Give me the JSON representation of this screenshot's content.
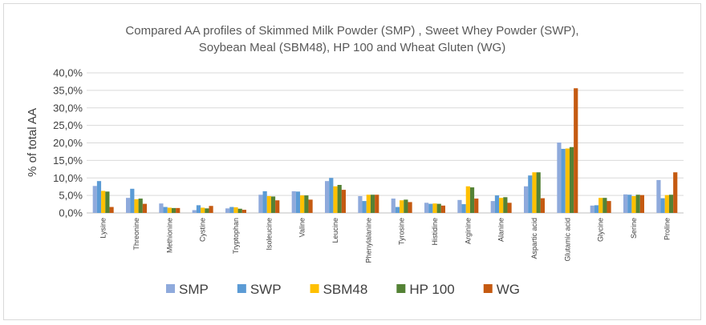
{
  "chart_data": {
    "type": "bar",
    "title_lines": [
      "Compared AA profiles of Skimmed Milk Powder (SMP) , Sweet Whey Powder (SWP),",
      "Soybean Meal (SBM48), HP 100  and Wheat Gluten (WG)"
    ],
    "ylabel": "% of total AA",
    "ylim": [
      0,
      0.4
    ],
    "yticks": [
      "0,0%",
      "5,0%",
      "10,0%",
      "15,0%",
      "20,0%",
      "25,0%",
      "30,0%",
      "35,0%",
      "40,0%"
    ],
    "grid": true,
    "legend_position": "bottom",
    "categories": [
      "Lysine",
      "Threonine",
      "Methionine",
      "Cystine",
      "Tryptophan",
      "Isoleucine",
      "Valine",
      "Leucine",
      "Phenylalanine",
      "Tyrosine",
      "Histidine",
      "Arginine",
      "Alanine",
      "Aspartic acid",
      "Glutamic acid",
      "Glycine",
      "Serine",
      "Proline"
    ],
    "series": [
      {
        "name": "SMP",
        "color": "#8faadc",
        "values": [
          0.077,
          0.043,
          0.027,
          0.008,
          0.013,
          0.052,
          0.062,
          0.091,
          0.048,
          0.041,
          0.029,
          0.037,
          0.034,
          0.076,
          0.201,
          0.021,
          0.053,
          0.094
        ]
      },
      {
        "name": "SWP",
        "color": "#5b9bd5",
        "values": [
          0.091,
          0.069,
          0.017,
          0.022,
          0.017,
          0.062,
          0.061,
          0.1,
          0.034,
          0.017,
          0.026,
          0.025,
          0.05,
          0.107,
          0.183,
          0.022,
          0.052,
          0.042
        ]
      },
      {
        "name": "SBM48",
        "color": "#ffc000",
        "values": [
          0.063,
          0.039,
          0.015,
          0.015,
          0.016,
          0.048,
          0.05,
          0.076,
          0.052,
          0.036,
          0.027,
          0.076,
          0.043,
          0.116,
          0.184,
          0.043,
          0.048,
          0.051
        ]
      },
      {
        "name": "HP 100",
        "color": "#548235",
        "values": [
          0.061,
          0.041,
          0.014,
          0.013,
          0.012,
          0.047,
          0.05,
          0.08,
          0.052,
          0.038,
          0.026,
          0.073,
          0.045,
          0.116,
          0.188,
          0.043,
          0.052,
          0.052
        ]
      },
      {
        "name": "WG",
        "color": "#c55a11",
        "values": [
          0.017,
          0.026,
          0.014,
          0.02,
          0.009,
          0.036,
          0.038,
          0.066,
          0.052,
          0.031,
          0.021,
          0.041,
          0.029,
          0.042,
          0.356,
          0.034,
          0.051,
          0.116
        ]
      }
    ]
  }
}
